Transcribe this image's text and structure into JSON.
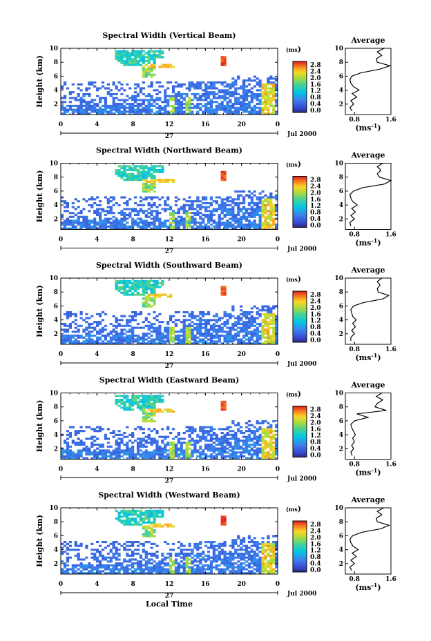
{
  "figure": {
    "xlabel": "Local Time",
    "date_day": "27",
    "date_month_year": "Jul 2000"
  },
  "chart_data": [
    {
      "type": "heatmap",
      "title": "Spectral Width (Vertical Beam)",
      "ylabel": "Height (km)",
      "xlim": [
        0,
        24
      ],
      "ylim": [
        0.5,
        10
      ],
      "xticks": [
        "0",
        "4",
        "8",
        "12",
        "16",
        "20",
        "0"
      ],
      "yticks": [
        "2",
        "4",
        "6",
        "8",
        "10"
      ],
      "colorbar": {
        "unit": "(ms-1)",
        "ticks": [
          "0.0",
          "0.4",
          "0.8",
          "1.2",
          "1.6",
          "2.0",
          "2.4",
          "2.8"
        ]
      },
      "profile": {
        "title": "Average",
        "xlabel": "(ms-1)",
        "xticks": [
          "0.8",
          "1.6"
        ],
        "xlim": [
          0.6,
          1.6
        ],
        "height": [
          1,
          1.5,
          2,
          2.5,
          3,
          3.5,
          4,
          4.5,
          5,
          5.5,
          6,
          6.5,
          7,
          7.5,
          8,
          8.5,
          9,
          9.5,
          10
        ],
        "width": [
          0.75,
          0.7,
          0.78,
          0.72,
          0.85,
          0.75,
          0.9,
          0.78,
          0.72,
          0.7,
          0.74,
          0.95,
          1.35,
          1.58,
          1.3,
          1.28,
          1.4,
          1.3,
          1.45
        ]
      }
    },
    {
      "type": "heatmap",
      "title": "Spectral Width (Northward Beam)",
      "ylabel": "Height (km)",
      "xlim": [
        0,
        24
      ],
      "ylim": [
        0.5,
        10
      ],
      "xticks": [
        "0",
        "4",
        "8",
        "12",
        "16",
        "20",
        "0"
      ],
      "yticks": [
        "2",
        "4",
        "6",
        "8",
        "10"
      ],
      "colorbar": {
        "unit": "(ms-1)",
        "ticks": [
          "0.0",
          "0.4",
          "0.8",
          "1.2",
          "1.6",
          "2.0",
          "2.4",
          "2.8"
        ]
      },
      "profile": {
        "title": "Average",
        "xlabel": "(ms-1)",
        "xticks": [
          "0.8",
          "1.6"
        ],
        "xlim": [
          0.6,
          1.6
        ],
        "height": [
          1,
          1.5,
          2,
          2.5,
          3,
          3.5,
          4,
          4.5,
          5,
          5.5,
          6,
          6.5,
          7,
          7.5,
          8,
          8.5,
          9,
          9.5,
          10
        ],
        "width": [
          0.72,
          0.7,
          0.8,
          0.72,
          0.82,
          0.74,
          0.86,
          0.76,
          0.72,
          0.7,
          0.78,
          0.98,
          1.45,
          1.6,
          1.35,
          1.3,
          1.38,
          1.3,
          1.42
        ]
      }
    },
    {
      "type": "heatmap",
      "title": "Spectral Width (Southward Beam)",
      "ylabel": "Height (km)",
      "xlim": [
        0,
        24
      ],
      "ylim": [
        0.5,
        10
      ],
      "xticks": [
        "0",
        "4",
        "8",
        "12",
        "16",
        "20",
        "0"
      ],
      "yticks": [
        "2",
        "4",
        "6",
        "8",
        "10"
      ],
      "colorbar": {
        "unit": "(ms-1)",
        "ticks": [
          "0.0",
          "0.4",
          "0.8",
          "1.2",
          "1.6",
          "2.0",
          "2.4",
          "2.8"
        ]
      },
      "profile": {
        "title": "Average",
        "xlabel": "(ms-1)",
        "xticks": [
          "0.8",
          "1.6"
        ],
        "xlim": [
          0.6,
          1.6
        ],
        "height": [
          1,
          1.5,
          2,
          2.5,
          3,
          3.5,
          4,
          4.5,
          5,
          5.5,
          6,
          6.5,
          7,
          7.5,
          8,
          8.5,
          9,
          9.5,
          10
        ],
        "width": [
          0.72,
          0.72,
          0.8,
          0.74,
          0.82,
          0.76,
          0.84,
          0.76,
          0.74,
          0.72,
          0.78,
          1.0,
          1.42,
          1.55,
          1.32,
          1.3,
          1.36,
          1.3,
          1.4
        ]
      }
    },
    {
      "type": "heatmap",
      "title": "Spectral Width (Eastward Beam)",
      "ylabel": "Height (km)",
      "xlim": [
        0,
        24
      ],
      "ylim": [
        0.5,
        10
      ],
      "xticks": [
        "0",
        "4",
        "8",
        "12",
        "16",
        "20",
        "0"
      ],
      "yticks": [
        "2",
        "4",
        "6",
        "8",
        "10"
      ],
      "colorbar": {
        "unit": "(ms-1)",
        "ticks": [
          "0.0",
          "0.4",
          "0.8",
          "1.2",
          "1.6",
          "2.0",
          "2.4",
          "2.8"
        ]
      },
      "profile": {
        "title": "Average",
        "xlabel": "(ms-1)",
        "xticks": [
          "0.8",
          "1.6"
        ],
        "xlim": [
          0.6,
          1.6
        ],
        "height": [
          1,
          1.5,
          2,
          2.5,
          3,
          3.5,
          4,
          4.5,
          5,
          5.5,
          6,
          6.5,
          7,
          7.5,
          8,
          8.5,
          9,
          9.5,
          10
        ],
        "width": [
          0.75,
          0.72,
          0.78,
          0.74,
          0.8,
          0.76,
          0.82,
          0.78,
          0.74,
          0.72,
          0.8,
          1.1,
          0.85,
          1.5,
          1.25,
          1.3,
          1.42,
          1.28,
          1.4
        ]
      }
    },
    {
      "type": "heatmap",
      "title": "Spectral Width (Westward Beam)",
      "ylabel": "Height (km)",
      "xlim": [
        0,
        24
      ],
      "ylim": [
        0.5,
        10
      ],
      "xticks": [
        "0",
        "4",
        "8",
        "12",
        "16",
        "20",
        "0"
      ],
      "yticks": [
        "2",
        "4",
        "6",
        "8",
        "10"
      ],
      "colorbar": {
        "unit": "(ms-1)",
        "ticks": [
          "0.0",
          "0.4",
          "0.8",
          "1.2",
          "1.6",
          "2.0",
          "2.4",
          "2.8"
        ]
      },
      "profile": {
        "title": "Average",
        "xlabel": "(ms-1)",
        "xticks": [
          "0.8",
          "1.6"
        ],
        "xlim": [
          0.6,
          1.6
        ],
        "height": [
          1,
          1.5,
          2,
          2.5,
          3,
          3.5,
          4,
          4.5,
          5,
          5.5,
          6,
          6.5,
          7,
          7.5,
          8,
          8.5,
          9,
          9.5,
          10
        ],
        "width": [
          0.74,
          0.7,
          0.8,
          0.72,
          0.84,
          0.75,
          0.88,
          0.77,
          0.72,
          0.7,
          0.76,
          0.96,
          1.38,
          1.56,
          1.3,
          1.28,
          1.4,
          1.3,
          1.44
        ]
      }
    }
  ]
}
